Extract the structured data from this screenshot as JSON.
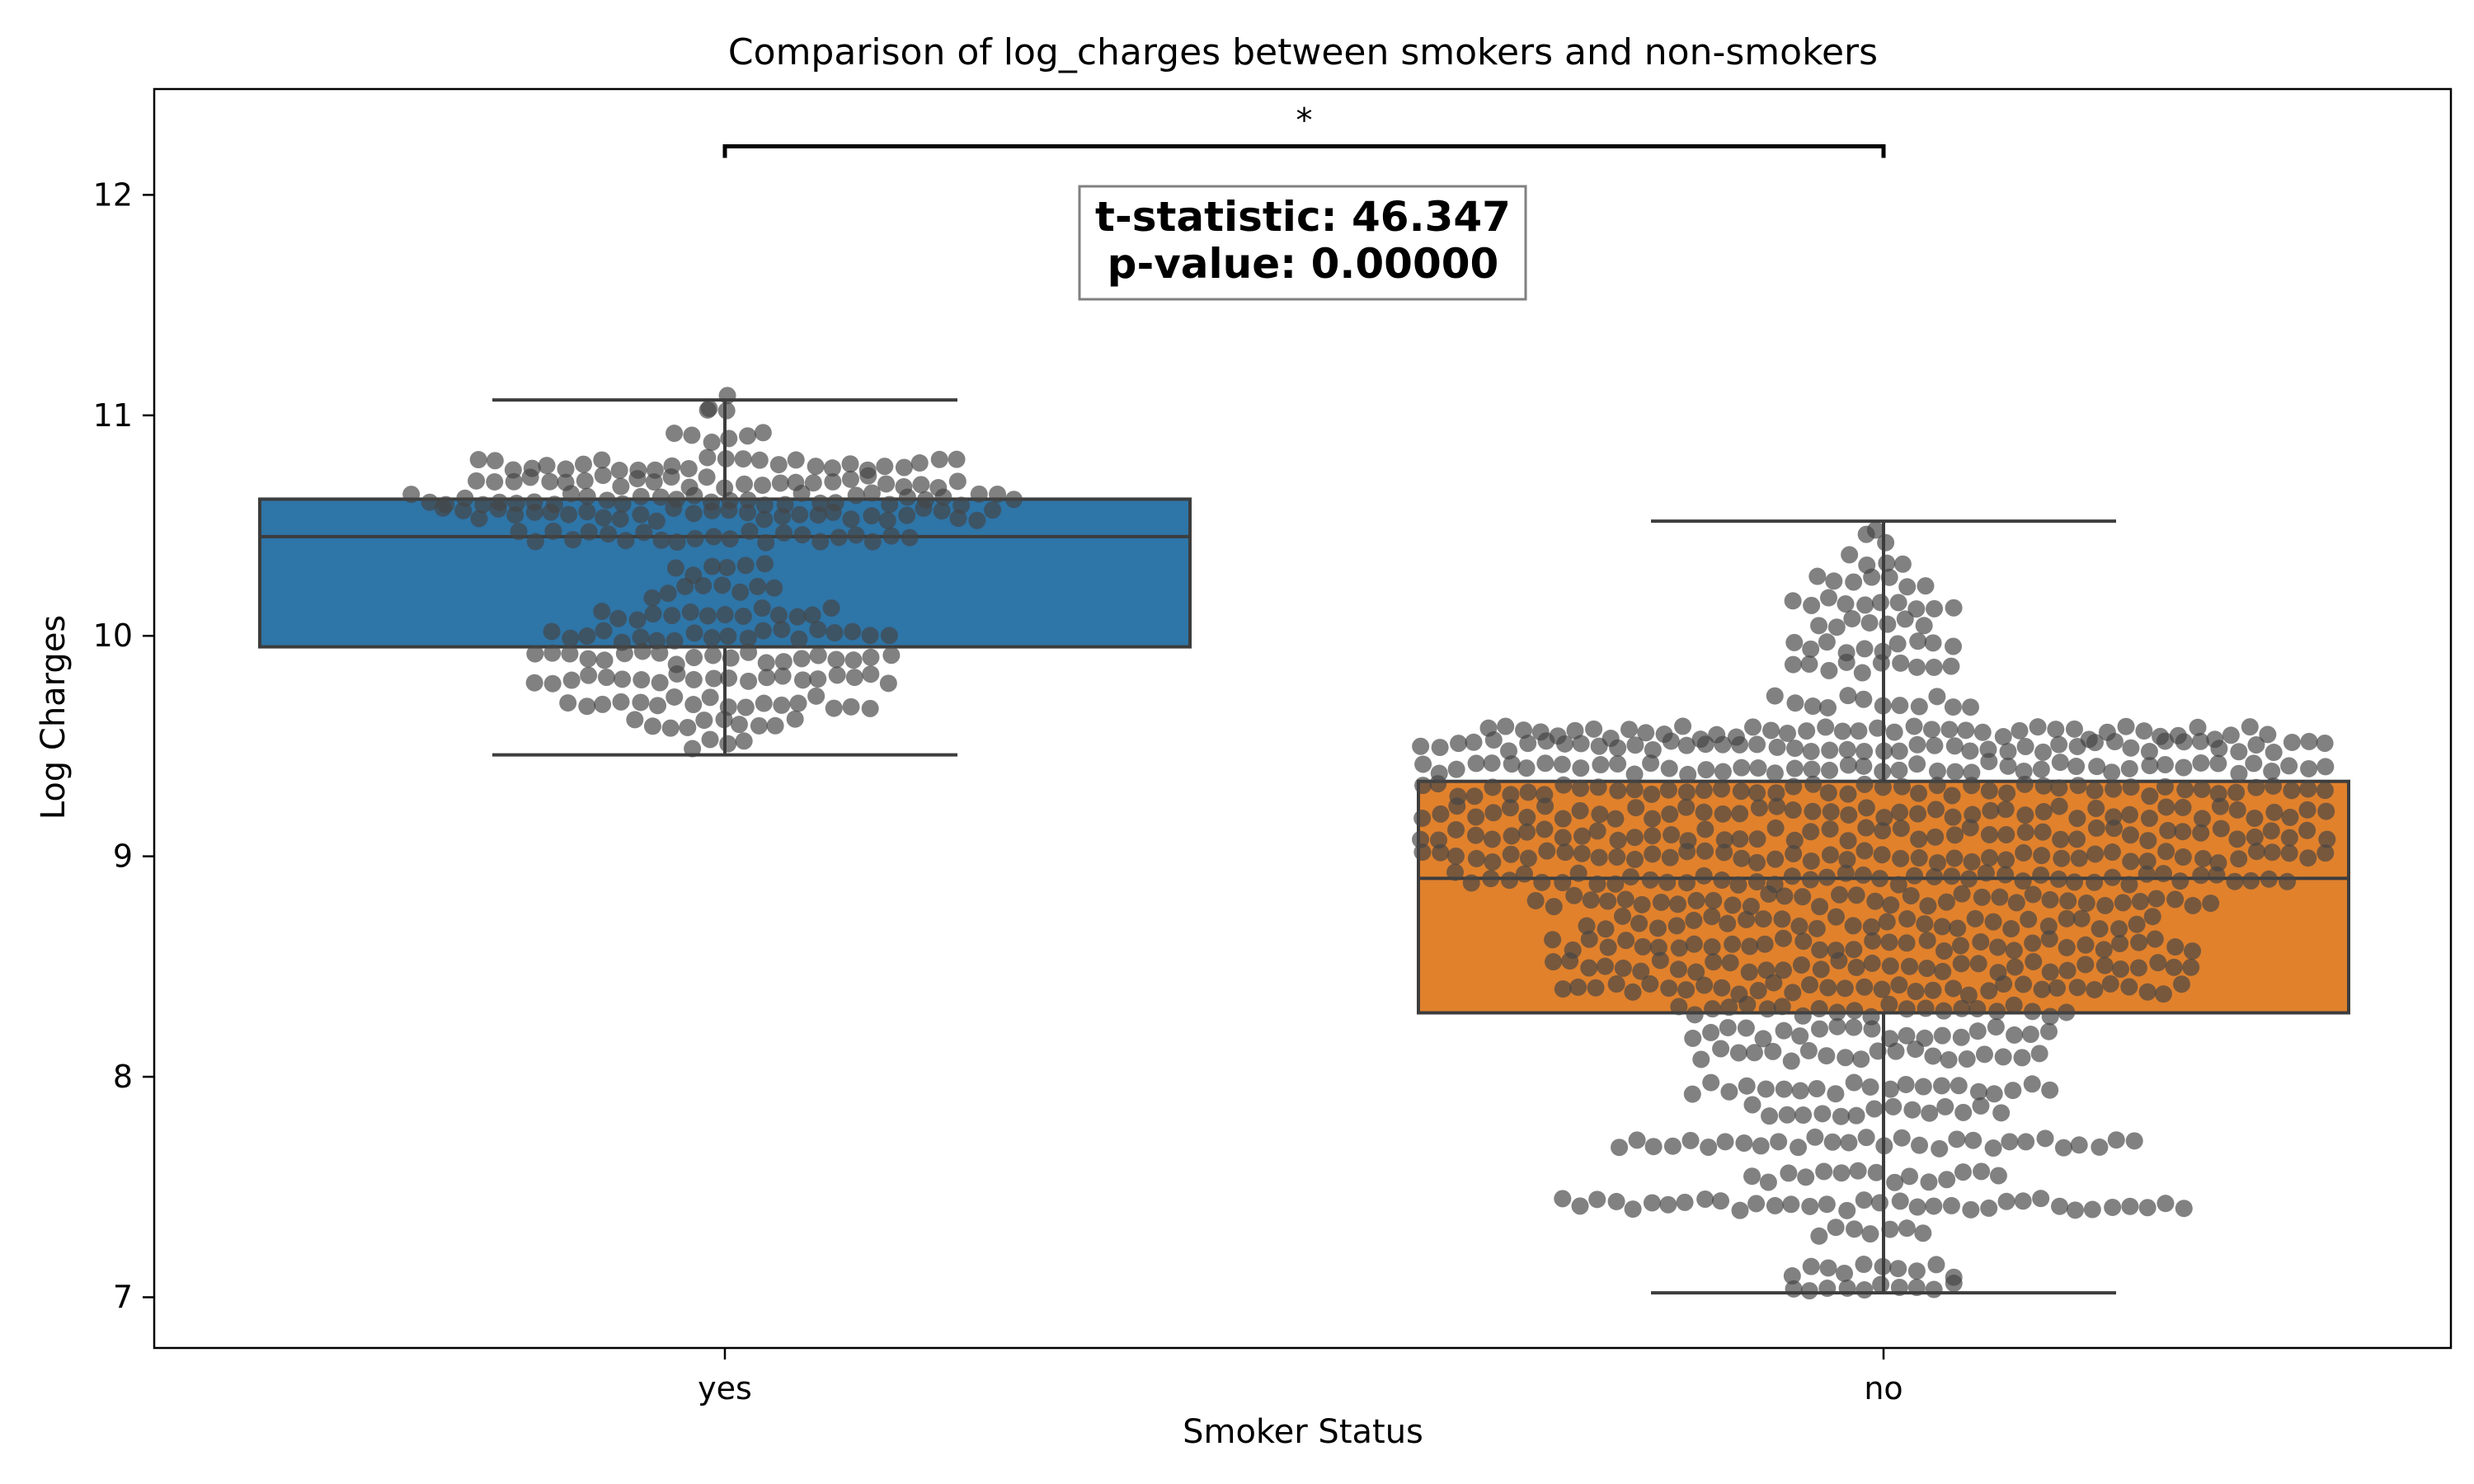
{
  "chart_data": {
    "type": "box",
    "title": "Comparison of log_charges between smokers and non-smokers",
    "xlabel": "Smoker Status",
    "ylabel": "Log Charges",
    "categories": [
      "yes",
      "no"
    ],
    "ylim": [
      6.77,
      12.48
    ],
    "yticks": [
      7,
      8,
      9,
      10,
      11,
      12
    ],
    "grid": false,
    "legend": "none",
    "overlay": "swarm",
    "boxes": [
      {
        "name": "yes",
        "color": "#2e75a8",
        "whisker_low": 9.46,
        "q1": 9.95,
        "median": 10.45,
        "q3": 10.62,
        "whisker_high": 11.07
      },
      {
        "name": "no",
        "color": "#e1812c",
        "whisker_low": 7.02,
        "q1": 8.29,
        "median": 8.9,
        "q3": 9.34,
        "whisker_high": 10.52
      }
    ],
    "annotation": {
      "significance": "*",
      "bracket_y": 12.22,
      "t_statistic": "t-statistic: 46.347",
      "p_value": "p-value: 0.00000"
    }
  }
}
